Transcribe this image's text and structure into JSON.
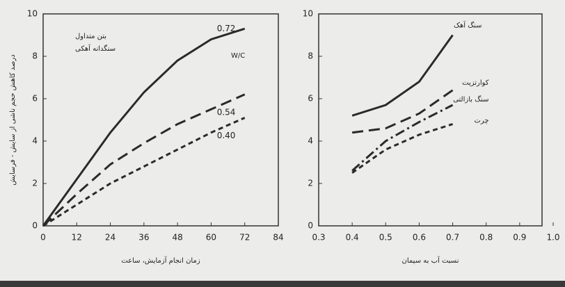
{
  "chart_data": [
    {
      "type": "line",
      "xlabel": "زمان انجام آزمایش، ساعت",
      "ylabel": "درصد کاهش حجم ناشی از سایش - فرسایش",
      "annotations": [
        "بتن متداول",
        "سنگدانه آهکی",
        "W/C"
      ],
      "x": [
        0,
        12,
        24,
        36,
        48,
        60,
        72
      ],
      "series": [
        {
          "name": "0.72",
          "color": "#2a2a2a",
          "dash": "solid",
          "values": [
            0,
            2.2,
            4.4,
            6.3,
            7.8,
            8.8,
            9.3
          ]
        },
        {
          "name": "0.54",
          "color": "#2a2a2a",
          "dash": "long-dash",
          "values": [
            0,
            1.5,
            2.9,
            3.9,
            4.8,
            5.5,
            6.2
          ]
        },
        {
          "name": "0.40",
          "color": "#2a2a2a",
          "dash": "short-dash",
          "values": [
            0,
            1.0,
            2.0,
            2.8,
            3.6,
            4.4,
            5.1
          ]
        }
      ],
      "xlim": [
        0,
        84
      ],
      "xticks": [
        0,
        12,
        24,
        36,
        48,
        60,
        72,
        84
      ],
      "ylim": [
        0,
        10
      ],
      "yticks": [
        0,
        2,
        4,
        6,
        8,
        10
      ]
    },
    {
      "type": "line",
      "xlabel": "نسبت آب به سیمان",
      "x": [
        0.4,
        0.5,
        0.6,
        0.7
      ],
      "series": [
        {
          "name": "سنگ آهک",
          "color": "#2a2a2a",
          "dash": "solid",
          "values": [
            5.2,
            5.7,
            6.8,
            9.0
          ]
        },
        {
          "name": "کوارتزیت",
          "color": "#2a2a2a",
          "dash": "long-dash",
          "values": [
            4.4,
            4.6,
            5.3,
            6.4
          ]
        },
        {
          "name": "سنگ بازالتی",
          "color": "#2a2a2a",
          "dash": "dash-dot",
          "values": [
            2.6,
            4.0,
            4.9,
            5.7
          ]
        },
        {
          "name": "چرت",
          "color": "#2a2a2a",
          "dash": "short-dash",
          "values": [
            2.5,
            3.6,
            4.3,
            4.8
          ]
        }
      ],
      "xlim": [
        0.3,
        1.0
      ],
      "xticks": [
        0.3,
        0.4,
        0.5,
        0.6,
        0.7,
        0.8,
        0.9,
        {
          "value": 1.0,
          "label": "1.0"
        }
      ],
      "ylim": [
        0,
        10
      ],
      "yticks": [
        0,
        2,
        4,
        6,
        8,
        10
      ]
    }
  ]
}
